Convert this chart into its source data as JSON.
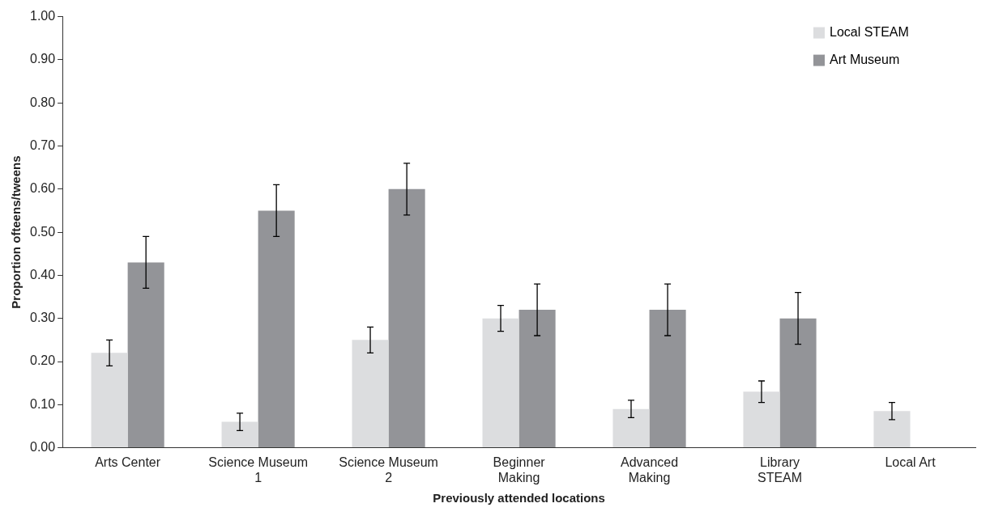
{
  "chart_data": {
    "type": "bar",
    "xlabel": "Previously attended locations",
    "ylabel": "Proportion ofteens/tweens",
    "categories": [
      "Arts Center",
      "Science Museum 1",
      "Science Museum 2",
      "Beginner Making",
      "Advanced Making",
      "Library STEAM",
      "Local Art"
    ],
    "series": [
      {
        "name": "Local STEAM",
        "color": "#dcdddf",
        "values": [
          0.22,
          0.06,
          0.25,
          0.3,
          0.09,
          0.13,
          0.085
        ],
        "errors": [
          0.03,
          0.02,
          0.03,
          0.03,
          0.02,
          0.025,
          0.02
        ]
      },
      {
        "name": "Art Museum",
        "color": "#939498",
        "values": [
          0.43,
          0.55,
          0.6,
          0.32,
          0.32,
          0.3,
          null
        ],
        "errors": [
          0.06,
          0.06,
          0.06,
          0.06,
          0.06,
          0.06,
          null
        ]
      }
    ],
    "ylim": [
      0,
      1
    ],
    "yticks": [
      {
        "value": 0,
        "label": "0.00"
      },
      {
        "value": 0.1,
        "label": "0.10"
      },
      {
        "value": 0.2,
        "label": "0.20"
      },
      {
        "value": 0.3,
        "label": "0.30"
      },
      {
        "value": 0.4,
        "label": "0.40"
      },
      {
        "value": 0.5,
        "label": "0.50"
      },
      {
        "value": 0.6,
        "label": "0.60"
      },
      {
        "value": 0.7,
        "label": "0.70"
      },
      {
        "value": 0.8,
        "label": "0.80"
      },
      {
        "value": 0.9,
        "label": "0.90"
      },
      {
        "value": 1,
        "label": "1.00"
      }
    ],
    "grid": false,
    "legend": "top right"
  }
}
